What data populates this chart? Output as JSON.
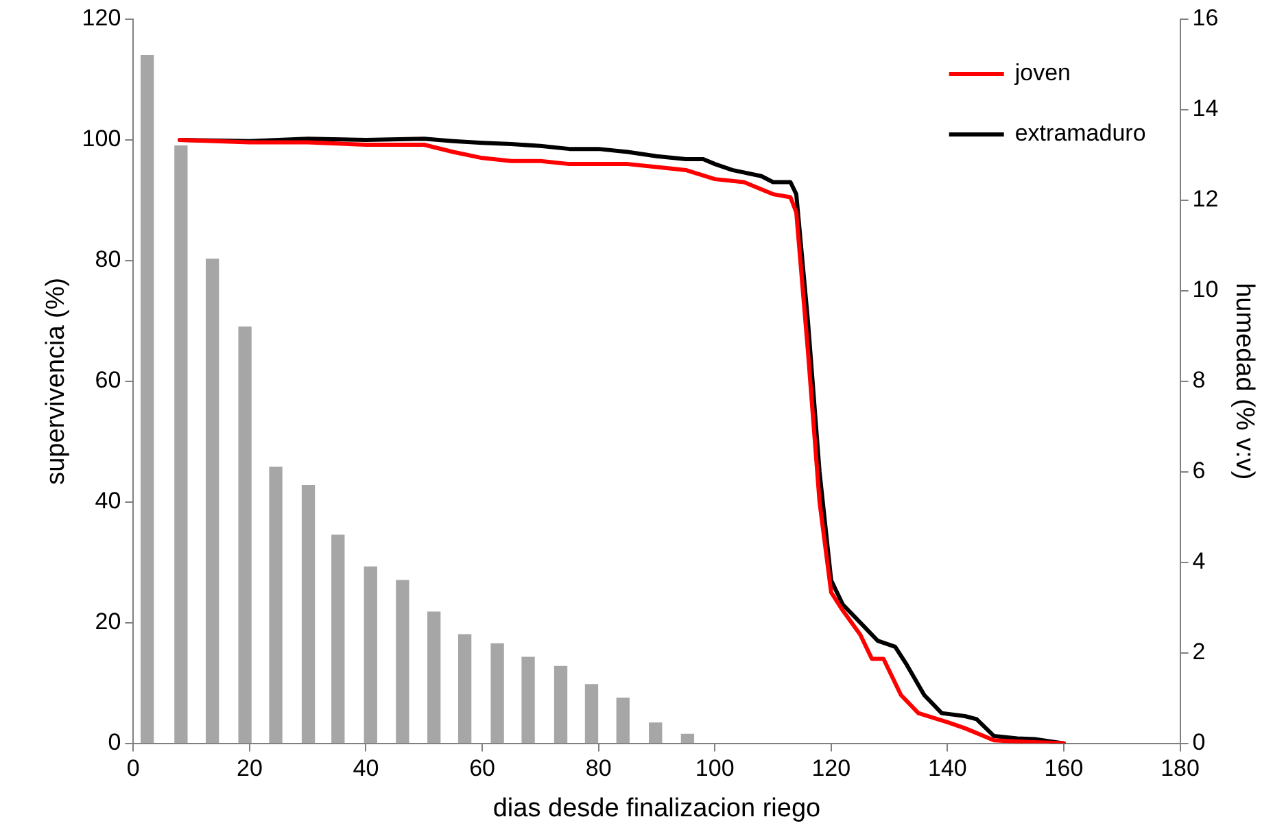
{
  "chart_data": {
    "type": "line",
    "xlabel": "dias desde finalizacion riego",
    "ylabel": "supervivencia (%)",
    "y2label": "humedad (% v:v)",
    "xlim": [
      0,
      180
    ],
    "xticks": [
      0,
      20,
      40,
      60,
      80,
      100,
      120,
      140,
      160,
      180
    ],
    "ylim": [
      0,
      120
    ],
    "yticks": [
      0,
      20,
      40,
      60,
      80,
      100,
      120
    ],
    "y2lim": [
      0,
      16
    ],
    "y2ticks": [
      0,
      2,
      4,
      6,
      8,
      10,
      12,
      14,
      16
    ],
    "grid": false,
    "legend": "top right",
    "marker": "none",
    "line_style": "solid",
    "series": [
      {
        "type": "bar",
        "axis": "y2",
        "color": "#a6a6a6",
        "x": [
          2.4,
          8.2,
          13.6,
          19.2,
          24.5,
          30.1,
          35.2,
          40.8,
          46.3,
          51.7,
          57,
          62.6,
          67.9,
          73.5,
          78.8,
          84.2,
          89.8,
          95.3
        ],
        "values": [
          15.2,
          13.2,
          10.7,
          9.2,
          6.1,
          5.7,
          4.6,
          3.9,
          3.6,
          2.9,
          2.4,
          2.2,
          1.9,
          1.7,
          1.3,
          1.0,
          0.45,
          0.2
        ]
      },
      {
        "name": "joven",
        "color": "#ff0000",
        "x": [
          8,
          20,
          30,
          40,
          50,
          55,
          60,
          65,
          70,
          75,
          80,
          85,
          90,
          95,
          100,
          105,
          110,
          113,
          114,
          116,
          118,
          120,
          122,
          125,
          127,
          129,
          132,
          135,
          140,
          143,
          148,
          152,
          160
        ],
        "values": [
          100,
          99.6,
          99.6,
          99.2,
          99.2,
          98,
          97,
          96.5,
          96.5,
          96,
          96,
          96,
          95.5,
          95,
          93.5,
          93,
          91,
          90.5,
          88,
          65,
          40,
          25,
          22,
          18,
          14,
          14,
          8,
          5,
          3.5,
          2.5,
          0.5,
          0.3,
          0
        ]
      },
      {
        "name": "extramaduro",
        "color": "#000000",
        "x": [
          8,
          20,
          30,
          40,
          50,
          55,
          60,
          65,
          70,
          75,
          80,
          85,
          90,
          95,
          98,
          100,
          103,
          108,
          110,
          113,
          114,
          116,
          118,
          120,
          122,
          125,
          128,
          131,
          133,
          136,
          139,
          143,
          145,
          148,
          152,
          155,
          160
        ],
        "values": [
          100,
          99.8,
          100.2,
          100,
          100.2,
          99.8,
          99.5,
          99.3,
          99,
          98.5,
          98.5,
          98,
          97.3,
          96.8,
          96.8,
          96,
          95,
          94,
          93,
          93,
          91,
          70,
          45,
          27,
          23,
          20,
          17,
          16,
          13,
          8,
          5,
          4.5,
          4,
          1.2,
          0.8,
          0.7,
          0
        ]
      }
    ]
  }
}
